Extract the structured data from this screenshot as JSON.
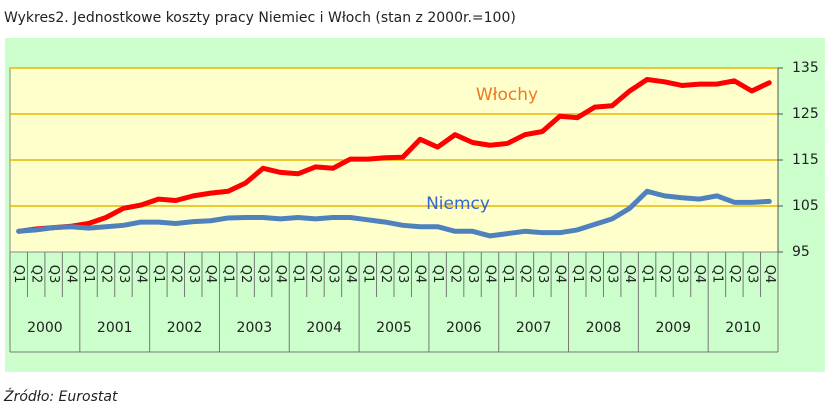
{
  "chart_data": {
    "type": "line",
    "title": "Wykres2. Jednostkowe koszty pracy Niemiec i Włoch (stan z 2000r.=100)",
    "source": "Źródło: Eurostat",
    "categories": [
      "Q1",
      "Q2",
      "Q3",
      "Q4",
      "Q1",
      "Q2",
      "Q3",
      "Q4",
      "Q1",
      "Q2",
      "Q3",
      "Q4",
      "Q1",
      "Q2",
      "Q3",
      "Q4",
      "Q1",
      "Q2",
      "Q3",
      "Q4",
      "Q1",
      "Q2",
      "Q3",
      "Q4",
      "Q1",
      "Q2",
      "Q3",
      "Q4",
      "Q1",
      "Q2",
      "Q3",
      "Q4",
      "Q1",
      "Q2",
      "Q3",
      "Q4",
      "Q1",
      "Q2",
      "Q3",
      "Q4",
      "Q1",
      "Q2",
      "Q3",
      "Q4"
    ],
    "category_groups": [
      "2000",
      "2001",
      "2002",
      "2003",
      "2004",
      "2005",
      "2006",
      "2007",
      "2008",
      "2009",
      "2010"
    ],
    "series": [
      {
        "name": "Włochy",
        "color": "#ff0000",
        "label_color": "#f07820",
        "values": [
          99.5,
          100,
          100.3,
          100.6,
          101.2,
          102.5,
          104.5,
          105.2,
          106.5,
          106.2,
          107.2,
          107.8,
          108.2,
          110,
          113.2,
          112.3,
          112,
          113.5,
          113.2,
          115.2,
          115.2,
          115.5,
          115.6,
          119.5,
          117.8,
          120.5,
          118.8,
          118.2,
          118.6,
          120.5,
          121.2,
          124.5,
          124.2,
          126.5,
          126.8,
          130,
          132.5,
          132,
          131.2,
          131.5,
          131.5,
          132.2,
          130,
          131.8
        ]
      },
      {
        "name": "Niemcy",
        "color": "#4f81bd",
        "label_color": "#3366cc",
        "values": [
          99.5,
          99.8,
          100.3,
          100.5,
          100.2,
          100.5,
          100.8,
          101.5,
          101.5,
          101.2,
          101.6,
          101.8,
          102.4,
          102.5,
          102.5,
          102.2,
          102.5,
          102.2,
          102.5,
          102.5,
          102,
          101.5,
          100.8,
          100.5,
          100.5,
          99.5,
          99.5,
          98.5,
          99,
          99.5,
          99.2,
          99.2,
          99.8,
          101,
          102.2,
          104.5,
          108.2,
          107.2,
          106.8,
          106.5,
          107.2,
          105.8,
          105.8,
          106
        ]
      }
    ],
    "ylim": [
      95,
      135
    ],
    "yticks": [
      95,
      105,
      115,
      125,
      135
    ],
    "grid": true
  }
}
